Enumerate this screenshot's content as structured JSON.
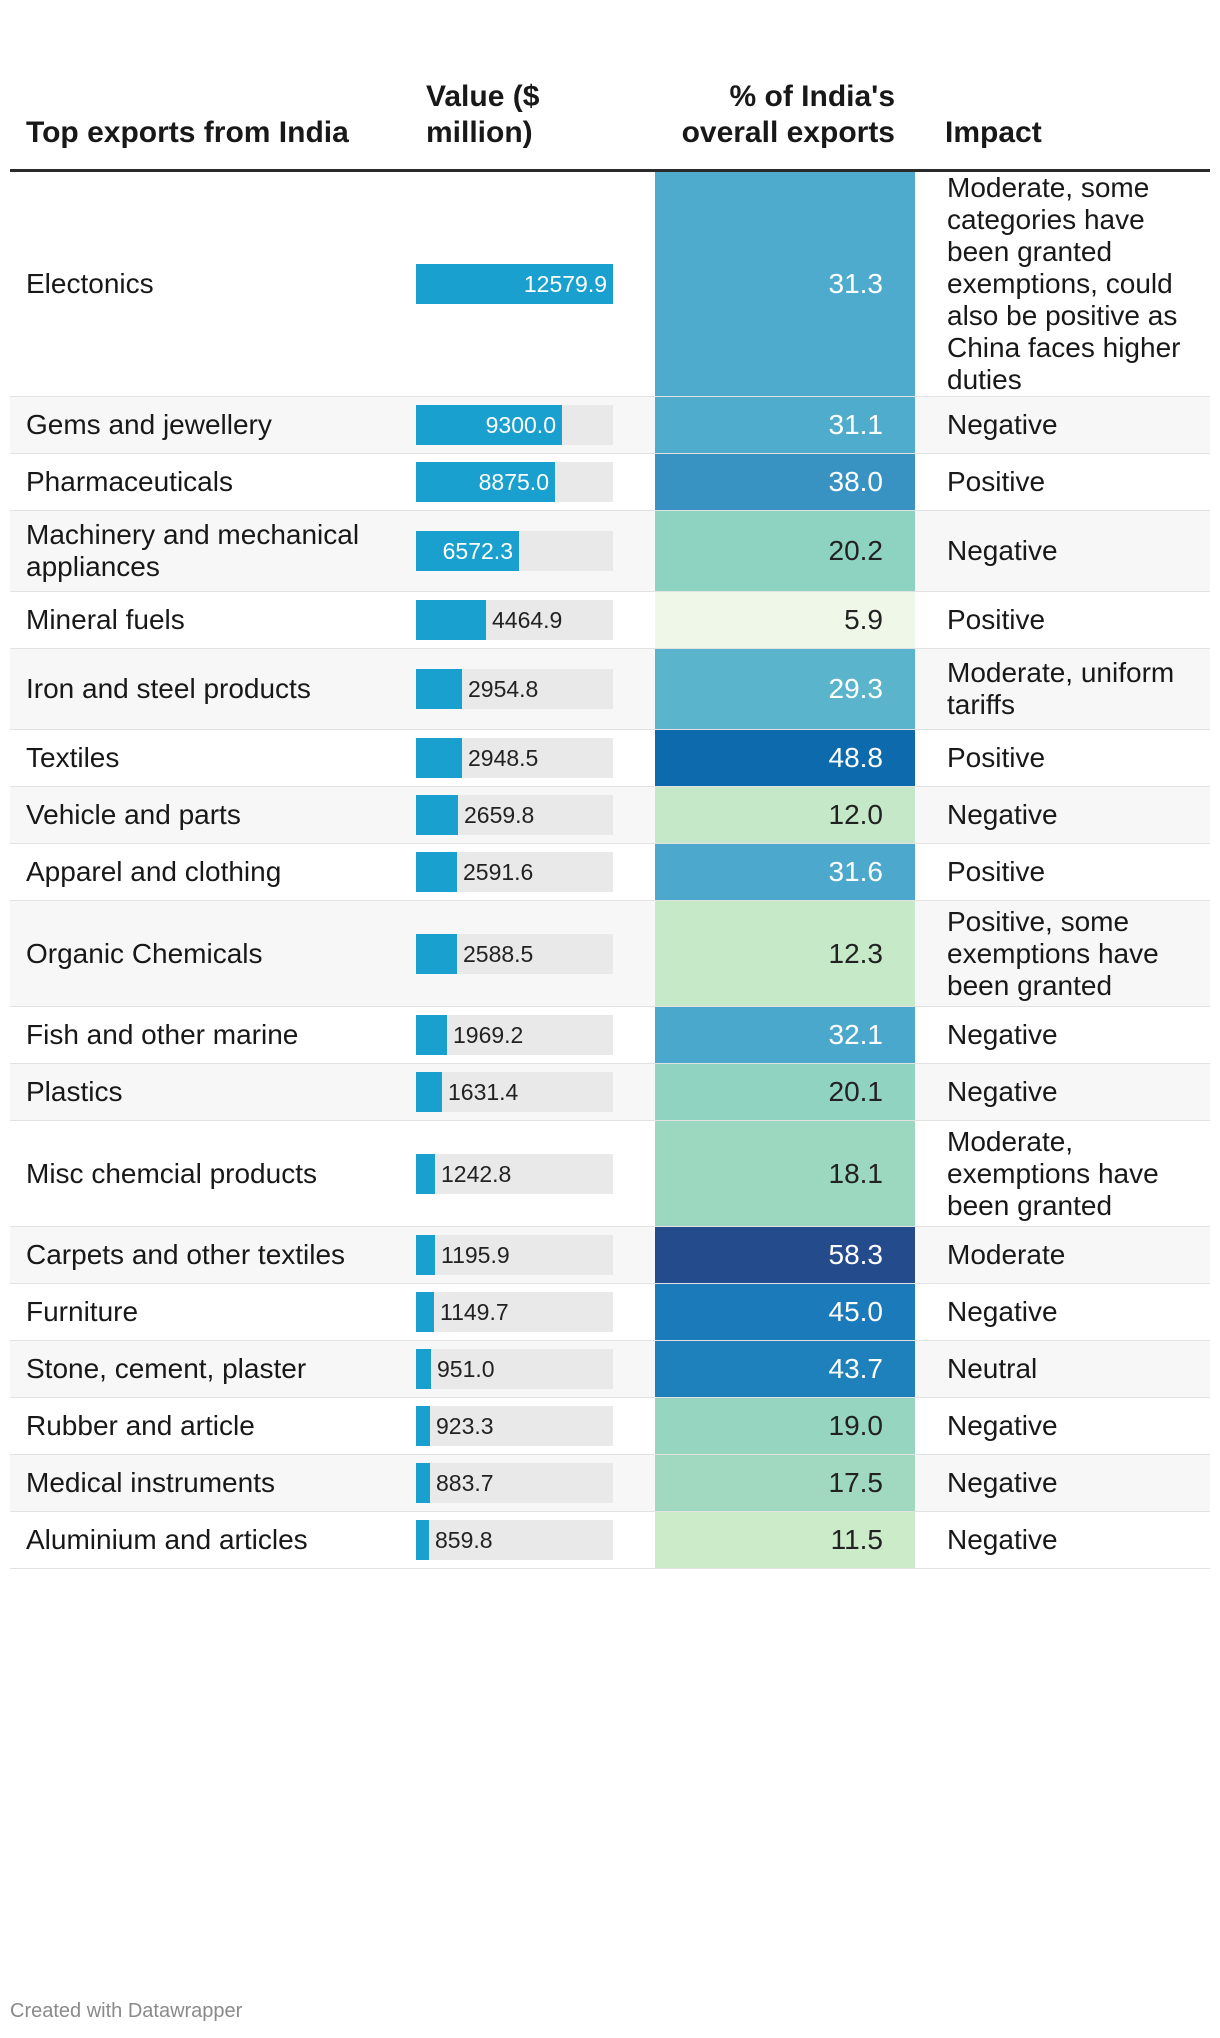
{
  "footer": "Created with Datawrapper",
  "chart_data": {
    "type": "table",
    "columns": [
      "Top exports from India",
      "Value ($ million)",
      "% of India's overall exports",
      "Impact"
    ],
    "value_max": 12579.9,
    "rows": [
      {
        "name": "Electonics",
        "value": 12579.9,
        "value_label": "12579.9",
        "pct": 31.3,
        "pct_label": "31.3",
        "color": "#4fabcd",
        "impact": "Moderate, some categories have been granted exemptions, could also be positive as China faces higher duties"
      },
      {
        "name": "Gems and jewellery",
        "value": 9300.0,
        "value_label": "9300.0",
        "pct": 31.1,
        "pct_label": "31.1",
        "color": "#50accd",
        "impact": "Negative"
      },
      {
        "name": "Pharmaceuticals",
        "value": 8875.0,
        "value_label": "8875.0",
        "pct": 38.0,
        "pct_label": "38.0",
        "color": "#3893c2",
        "impact": "Positive"
      },
      {
        "name": "Machinery and mechanical appliances",
        "value": 6572.3,
        "value_label": "6572.3",
        "pct": 20.2,
        "pct_label": "20.2",
        "color": "#8ed3c2",
        "impact": "Negative"
      },
      {
        "name": "Mineral fuels",
        "value": 4464.9,
        "value_label": "4464.9",
        "pct": 5.9,
        "pct_label": "5.9",
        "color": "#eff8e8",
        "impact": "Positive"
      },
      {
        "name": "Iron and steel products",
        "value": 2954.8,
        "value_label": "2954.8",
        "pct": 29.3,
        "pct_label": "29.3",
        "color": "#5ab5cc",
        "impact": "Moderate, uniform tariffs"
      },
      {
        "name": "Textiles",
        "value": 2948.5,
        "value_label": "2948.5",
        "pct": 48.8,
        "pct_label": "48.8",
        "color": "#0d6bad",
        "impact": "Positive"
      },
      {
        "name": "Vehicle and parts",
        "value": 2659.8,
        "value_label": "2659.8",
        "pct": 12.0,
        "pct_label": "12.0",
        "color": "#c4e8c8",
        "impact": "Negative"
      },
      {
        "name": "Apparel and clothing",
        "value": 2591.6,
        "value_label": "2591.6",
        "pct": 31.6,
        "pct_label": "31.6",
        "color": "#4ca9cd",
        "impact": "Positive"
      },
      {
        "name": "Organic Chemicals",
        "value": 2588.5,
        "value_label": "2588.5",
        "pct": 12.3,
        "pct_label": "12.3",
        "color": "#c6e9c7",
        "impact": "Positive, some exemptions have been granted"
      },
      {
        "name": "Fish and other marine",
        "value": 1969.2,
        "value_label": "1969.2",
        "pct": 32.1,
        "pct_label": "32.1",
        "color": "#4aa8cd",
        "impact": "Negative"
      },
      {
        "name": "Plastics",
        "value": 1631.4,
        "value_label": "1631.4",
        "pct": 20.1,
        "pct_label": "20.1",
        "color": "#90d3c1",
        "impact": "Negative"
      },
      {
        "name": "Misc chemcial products",
        "value": 1242.8,
        "value_label": "1242.8",
        "pct": 18.1,
        "pct_label": "18.1",
        "color": "#9cd8bf",
        "impact": "Moderate, exemptions have been granted"
      },
      {
        "name": "Carpets and other textiles",
        "value": 1195.9,
        "value_label": "1195.9",
        "pct": 58.3,
        "pct_label": "58.3",
        "color": "#244c8c",
        "impact": "Moderate"
      },
      {
        "name": "Furniture",
        "value": 1149.7,
        "value_label": "1149.7",
        "pct": 45.0,
        "pct_label": "45.0",
        "color": "#1b7ab9",
        "impact": "Negative"
      },
      {
        "name": "Stone, cement, plaster",
        "value": 951.0,
        "value_label": "951.0",
        "pct": 43.7,
        "pct_label": "43.7",
        "color": "#1e81bb",
        "impact": "Neutral"
      },
      {
        "name": "Rubber and article",
        "value": 923.3,
        "value_label": "923.3",
        "pct": 19.0,
        "pct_label": "19.0",
        "color": "#96d5c0",
        "impact": "Negative"
      },
      {
        "name": "Medical instruments",
        "value": 883.7,
        "value_label": "883.7",
        "pct": 17.5,
        "pct_label": "17.5",
        "color": "#a0d9bf",
        "impact": "Negative"
      },
      {
        "name": "Aluminium and articles",
        "value": 859.8,
        "value_label": "859.8",
        "pct": 11.5,
        "pct_label": "11.5",
        "color": "#cbebc9",
        "impact": "Negative"
      }
    ]
  }
}
